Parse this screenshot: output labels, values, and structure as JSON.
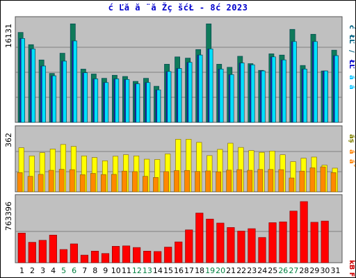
{
  "title": "ć Ľă  ă ¨ă Žç šćŁ  - 8ć   2023",
  "colors": {
    "weekday_label": "#000000",
    "weekend_label": "#008040",
    "panel_bg": "#c0c0c0",
    "grid": "#808080"
  },
  "chart_data": [
    {
      "type": "bar",
      "panel": "top",
      "y_max_label": "16131",
      "ylim": [
        0,
        16131
      ],
      "categories": [
        "1",
        "2",
        "3",
        "4",
        "5",
        "6",
        "7",
        "8",
        "9",
        "10",
        "11",
        "12",
        "13",
        "14",
        "15",
        "16",
        "17",
        "18",
        "19",
        "20",
        "21",
        "22",
        "23",
        "24",
        "25",
        "26",
        "27",
        "28",
        "29",
        "30",
        "31"
      ],
      "weekend_days": [
        "5",
        "6",
        "12",
        "13",
        "19",
        "20",
        "26",
        "27"
      ],
      "right_labels": [
        {
          "text": "ć",
          "color": "#006080"
        },
        {
          "text": "ŁĽ",
          "color": "#006080"
        },
        {
          "text": "/",
          "color": "#006080"
        },
        {
          "text": "ŁĽ",
          "color": "#0000cc"
        },
        {
          "text": "ă",
          "color": "#00c0ff"
        },
        {
          "text": "ă",
          "color": "#00c0ff"
        }
      ],
      "series": [
        {
          "color": "#0f7a5a",
          "values": [
            14700,
            12700,
            10200,
            8000,
            11300,
            16100,
            8700,
            7900,
            7200,
            7700,
            7500,
            6700,
            7200,
            5900,
            9500,
            10700,
            10500,
            11900,
            16100,
            9500,
            9000,
            10800,
            9600,
            8500,
            11200,
            11000,
            15200,
            9300,
            14400,
            8400,
            11800
          ]
        },
        {
          "color": "#2020b0",
          "values": [
            13700,
            12000,
            9200,
            7600,
            10000,
            13300,
            8100,
            7100,
            6500,
            7100,
            7000,
            6300,
            6500,
            5300,
            8300,
            8800,
            9800,
            11000,
            12000,
            8700,
            7800,
            9700,
            9400,
            8400,
            10700,
            10200,
            13200,
            8700,
            13200,
            8400,
            10900
          ]
        },
        {
          "color": "#00e0ff",
          "values": [
            13700,
            12000,
            9200,
            7600,
            10000,
            13300,
            8100,
            7100,
            6500,
            7100,
            7000,
            6300,
            6500,
            5300,
            8300,
            8800,
            9800,
            11000,
            12000,
            8700,
            7800,
            9700,
            9400,
            8400,
            10700,
            10200,
            13200,
            8700,
            13200,
            8400,
            10900
          ]
        }
      ]
    },
    {
      "type": "bar",
      "panel": "middle",
      "y_max_label": "362",
      "ylim": [
        0,
        362
      ],
      "right_labels": [
        {
          "text": "ăş",
          "color": "#808000"
        },
        {
          "text": "ă",
          "color": "#ff8000"
        },
        {
          "text": "ăˇ",
          "color": "#ff8000"
        }
      ],
      "series": [
        {
          "color": "#ffff00",
          "values": [
            270,
            220,
            240,
            262,
            290,
            278,
            220,
            210,
            190,
            218,
            227,
            220,
            200,
            198,
            232,
            322,
            322,
            303,
            222,
            260,
            298,
            272,
            253,
            242,
            250,
            227,
            185,
            206,
            213,
            163,
            145
          ]
        },
        {
          "color": "#ff8800",
          "values": [
            118,
            95,
            107,
            132,
            138,
            136,
            105,
            113,
            106,
            107,
            127,
            124,
            95,
            88,
            124,
            130,
            131,
            125,
            128,
            123,
            133,
            136,
            132,
            137,
            137,
            136,
            85,
            127,
            147,
            153,
            118
          ]
        }
      ]
    },
    {
      "type": "bar",
      "panel": "bottom",
      "y_max_label": "763396",
      "ylim": [
        0,
        763396
      ],
      "right_labels": [
        {
          "text": "kB F",
          "color": "#cc0000"
        }
      ],
      "series": [
        {
          "color": "#ff0000",
          "values": [
            370000,
            255000,
            280000,
            345000,
            165000,
            235000,
            95000,
            145000,
            115000,
            205000,
            210000,
            190000,
            145000,
            140000,
            195000,
            260000,
            410000,
            620000,
            545000,
            495000,
            440000,
            395000,
            425000,
            315000,
            500000,
            510000,
            645000,
            763396,
            505000,
            520000,
            0
          ]
        }
      ]
    }
  ]
}
